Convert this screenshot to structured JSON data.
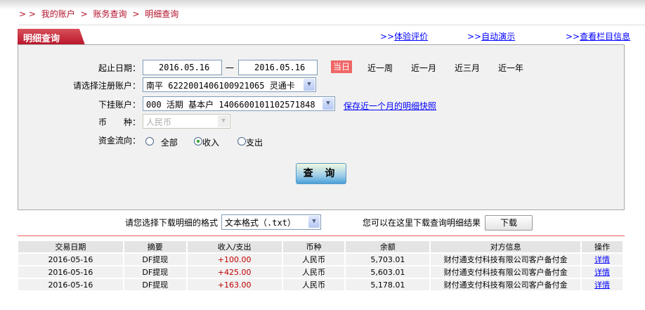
{
  "breadcrumb": {
    "prefix": "> >",
    "items": [
      "我的账户",
      "账务查询",
      "明细查询"
    ],
    "sep": ">"
  },
  "tab_title": "明细查询",
  "top_links": [
    {
      "prefix": ">>",
      "label": "体验评价"
    },
    {
      "prefix": ">>",
      "label": "自动演示"
    },
    {
      "prefix": ">>",
      "label": "查看栏目信息"
    }
  ],
  "form": {
    "date_label": "起止日期：",
    "date_from": "2016.05.16",
    "date_sep": "一",
    "date_to": "2016.05.16",
    "quick_ranges": [
      "当日",
      "近一周",
      "近一月",
      "近三月",
      "近一年"
    ],
    "account_label": "请选择注册账户：",
    "account_value": "南平 6222001406100921065 灵通卡",
    "sub_account_label": "下挂账户：",
    "sub_account_value": "000 活期 基本户 1406600101102571848",
    "snapshot_link": "保存近一个月的明细快照",
    "currency_label": "币　　种：",
    "currency_value": "人民币",
    "flow_label": "资金流向：",
    "flow_options": [
      "全部",
      "收入",
      "支出"
    ],
    "flow_selected": "收入",
    "query_button": "查 询"
  },
  "download": {
    "format_label": "请您选择下载明细的格式",
    "format_value": "文本格式（.txt）",
    "hint": "您可以在这里下载查询明细结果",
    "button": "下载"
  },
  "table": {
    "headers": [
      "交易日期",
      "摘要",
      "收入/支出",
      "币种",
      "余额",
      "对方信息",
      "操作"
    ],
    "rows": [
      [
        "2016-05-16",
        "DF提现",
        "+100.00",
        "人民币",
        "5,703.01",
        "财付通支付科技有限公司客户备付金",
        "详情"
      ],
      [
        "2016-05-16",
        "DF提现",
        "+425.00",
        "人民币",
        "5,603.01",
        "财付通支付科技有限公司客户备付金",
        "详情"
      ],
      [
        "2016-05-16",
        "DF提现",
        "+163.00",
        "人民币",
        "5,178.01",
        "财付通支付科技有限公司客户备付金",
        "详情"
      ]
    ]
  },
  "colors": {
    "brand_red": "#b8142a",
    "today_bg": "#f06666",
    "amount": "#c00000",
    "link": "#0000ff"
  }
}
